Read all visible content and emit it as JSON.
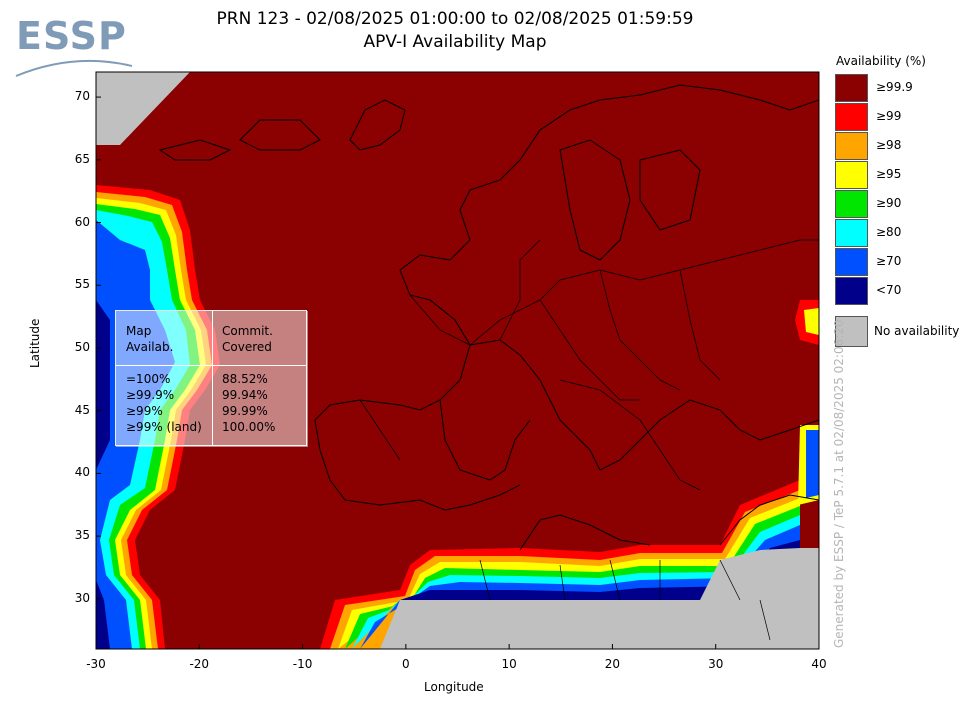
{
  "title_line1": "PRN 123 - 02/08/2025 01:00:00 to 02/08/2025 01:59:59",
  "title_line2": "APV-I Availability Map",
  "logo_text": "ESSP",
  "axes": {
    "xlabel": "Longitude",
    "ylabel": "Latitude",
    "xlim": [
      -30,
      40
    ],
    "ylim": [
      26,
      72
    ],
    "xticks": [
      "-30",
      "-20",
      "-10",
      "0",
      "10",
      "20",
      "30",
      "40"
    ],
    "yticks": [
      "70",
      "65",
      "60",
      "55",
      "50",
      "45",
      "40",
      "35",
      "30"
    ]
  },
  "legend": {
    "title": "Availability (%)",
    "items": [
      {
        "label": "≥99.9",
        "color": "#8b0000"
      },
      {
        "label": "≥99",
        "color": "#ff0000"
      },
      {
        "label": "≥98",
        "color": "#ffa500"
      },
      {
        "label": "≥95",
        "color": "#ffff00"
      },
      {
        "label": "≥90",
        "color": "#00e600"
      },
      {
        "label": "≥80",
        "color": "#00ffff"
      },
      {
        "label": "≥70",
        "color": "#0050ff"
      },
      {
        "label": "<70",
        "color": "#00008b"
      }
    ],
    "no_availability": {
      "label": "No availability",
      "color": "#c0c0c0"
    }
  },
  "stats": {
    "col1_header": "Map\nAvailab.",
    "col2_header": "Commit.\nCovered",
    "rows_col1": "=100%\n≥99.9%\n≥99%\n≥99% (land)",
    "rows_col2": "88.52%\n99.94%\n99.99%\n100.00%"
  },
  "credit": "Generated by ESSP / TeP 5.7.1 at 02/08/2025 02:06:20"
}
